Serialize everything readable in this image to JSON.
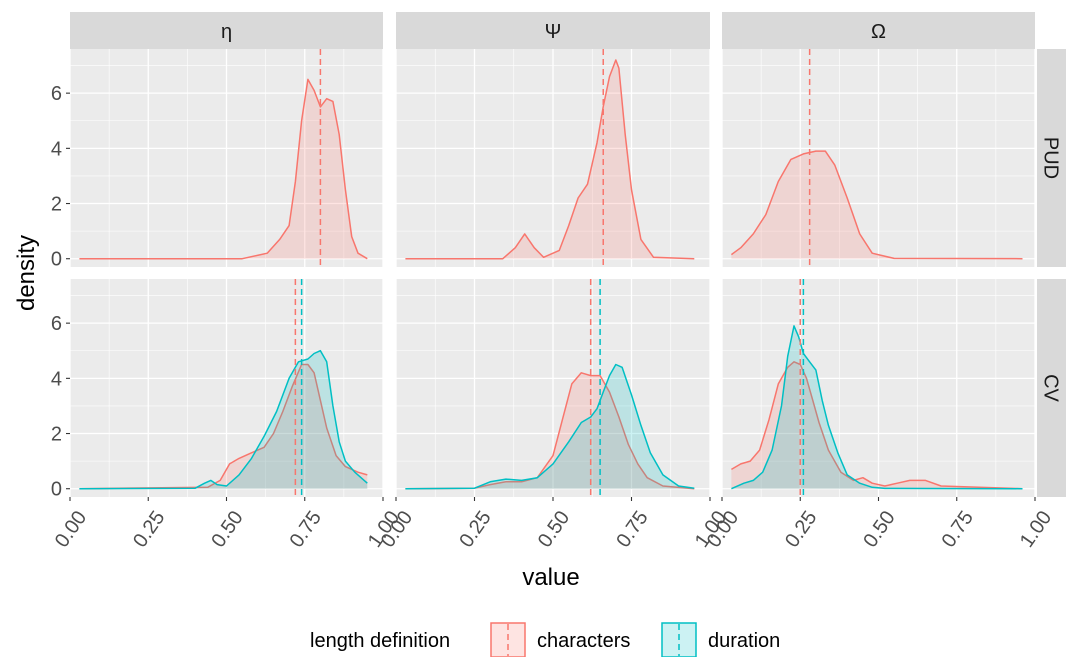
{
  "chart_data": {
    "type": "area",
    "title": "",
    "xlabel": "value",
    "ylabel": "density",
    "xlim": [
      0,
      1
    ],
    "ylim": [
      -0.3,
      7.6
    ],
    "x_ticks": [
      0,
      0.25,
      0.5,
      0.75,
      1
    ],
    "x_tick_labels": [
      "0.00",
      "0.25",
      "0.50",
      "0.75",
      "1.00"
    ],
    "y_ticks": [
      0,
      2,
      4,
      6
    ],
    "y_tick_labels": [
      "0",
      "2",
      "4",
      "6"
    ],
    "grid": true,
    "facet_columns": [
      "η",
      "Ψ",
      "Ω"
    ],
    "facet_rows": [
      "PUD",
      "CV"
    ],
    "legend": {
      "title": "length definition",
      "position": "bottom",
      "entries": [
        {
          "name": "characters",
          "color": "#F8766D"
        },
        {
          "name": "duration",
          "color": "#00BFC4"
        }
      ]
    },
    "panels": [
      {
        "col": "η",
        "row": "PUD",
        "series": [
          {
            "name": "characters",
            "mean": 0.8,
            "x": [
              0.03,
              0.55,
              0.63,
              0.67,
              0.7,
              0.72,
              0.74,
              0.76,
              0.78,
              0.8,
              0.82,
              0.84,
              0.86,
              0.88,
              0.9,
              0.92,
              0.95
            ],
            "y": [
              0,
              0,
              0.2,
              0.7,
              1.2,
              2.8,
              5.0,
              6.5,
              6.1,
              5.5,
              5.8,
              5.7,
              4.5,
              2.5,
              0.8,
              0.2,
              0
            ]
          }
        ]
      },
      {
        "col": "Ψ",
        "row": "PUD",
        "series": [
          {
            "name": "characters",
            "mean": 0.66,
            "x": [
              0.03,
              0.34,
              0.38,
              0.41,
              0.44,
              0.47,
              0.52,
              0.55,
              0.58,
              0.61,
              0.64,
              0.66,
              0.68,
              0.7,
              0.71,
              0.73,
              0.75,
              0.78,
              0.82,
              0.95
            ],
            "y": [
              0,
              0,
              0.4,
              0.9,
              0.4,
              0.05,
              0.3,
              1.2,
              2.2,
              2.7,
              4.2,
              5.5,
              6.6,
              7.2,
              6.9,
              4.5,
              2.5,
              0.7,
              0.05,
              0
            ]
          }
        ]
      },
      {
        "col": "Ω",
        "row": "PUD",
        "series": [
          {
            "name": "characters",
            "mean": 0.28,
            "x": [
              0.03,
              0.06,
              0.1,
              0.14,
              0.18,
              0.22,
              0.26,
              0.3,
              0.33,
              0.36,
              0.4,
              0.44,
              0.48,
              0.55,
              0.96
            ],
            "y": [
              0.15,
              0.4,
              0.9,
              1.6,
              2.8,
              3.6,
              3.8,
              3.9,
              3.9,
              3.4,
              2.2,
              0.9,
              0.2,
              0.01,
              0
            ]
          }
        ]
      },
      {
        "col": "η",
        "row": "CV",
        "series": [
          {
            "name": "characters",
            "mean": 0.72,
            "x": [
              0.03,
              0.44,
              0.48,
              0.51,
              0.54,
              0.58,
              0.62,
              0.65,
              0.68,
              0.71,
              0.74,
              0.76,
              0.78,
              0.8,
              0.82,
              0.85,
              0.88,
              0.92,
              0.95
            ],
            "y": [
              0,
              0.05,
              0.3,
              0.9,
              1.1,
              1.3,
              1.5,
              2.0,
              2.8,
              3.7,
              4.5,
              4.5,
              4.2,
              3.2,
              2.2,
              1.2,
              0.8,
              0.6,
              0.5
            ]
          },
          {
            "name": "duration",
            "mean": 0.74,
            "x": [
              0.03,
              0.4,
              0.43,
              0.45,
              0.47,
              0.5,
              0.54,
              0.58,
              0.62,
              0.66,
              0.7,
              0.73,
              0.76,
              0.78,
              0.8,
              0.82,
              0.84,
              0.86,
              0.88,
              0.91,
              0.95
            ],
            "y": [
              0,
              0.02,
              0.2,
              0.3,
              0.15,
              0.1,
              0.5,
              1.1,
              1.9,
              2.8,
              4.0,
              4.6,
              4.7,
              4.9,
              5.0,
              4.6,
              3.0,
              1.7,
              1.0,
              0.6,
              0.2
            ]
          }
        ]
      },
      {
        "col": "Ψ",
        "row": "CV",
        "series": [
          {
            "name": "characters",
            "mean": 0.62,
            "x": [
              0.03,
              0.25,
              0.3,
              0.35,
              0.4,
              0.45,
              0.5,
              0.53,
              0.56,
              0.59,
              0.62,
              0.65,
              0.68,
              0.71,
              0.74,
              0.77,
              0.8,
              0.85,
              0.95
            ],
            "y": [
              0,
              0.02,
              0.15,
              0.25,
              0.25,
              0.4,
              1.2,
              2.5,
              3.8,
              4.2,
              4.1,
              4.1,
              3.5,
              2.6,
              1.6,
              0.9,
              0.4,
              0.1,
              0
            ]
          },
          {
            "name": "duration",
            "mean": 0.65,
            "x": [
              0.03,
              0.25,
              0.3,
              0.35,
              0.4,
              0.45,
              0.5,
              0.55,
              0.59,
              0.62,
              0.64,
              0.66,
              0.68,
              0.7,
              0.72,
              0.75,
              0.78,
              0.81,
              0.85,
              0.9,
              0.95
            ],
            "y": [
              0,
              0.02,
              0.25,
              0.35,
              0.3,
              0.4,
              0.9,
              1.7,
              2.4,
              2.6,
              2.9,
              3.5,
              4.1,
              4.5,
              4.4,
              3.4,
              2.3,
              1.3,
              0.5,
              0.1,
              0.02
            ]
          }
        ]
      },
      {
        "col": "Ω",
        "row": "CV",
        "series": [
          {
            "name": "characters",
            "mean": 0.25,
            "x": [
              0.03,
              0.06,
              0.09,
              0.12,
              0.15,
              0.18,
              0.21,
              0.23,
              0.25,
              0.27,
              0.29,
              0.31,
              0.34,
              0.38,
              0.42,
              0.45,
              0.48,
              0.52,
              0.56,
              0.6,
              0.65,
              0.7,
              0.96
            ],
            "y": [
              0.7,
              0.9,
              1.0,
              1.4,
              2.5,
              3.8,
              4.4,
              4.6,
              4.5,
              4.0,
              3.2,
              2.4,
              1.4,
              0.6,
              0.3,
              0.4,
              0.2,
              0.1,
              0.2,
              0.3,
              0.3,
              0.1,
              0
            ]
          },
          {
            "name": "duration",
            "mean": 0.26,
            "x": [
              0.03,
              0.07,
              0.1,
              0.13,
              0.16,
              0.19,
              0.21,
              0.23,
              0.245,
              0.26,
              0.28,
              0.3,
              0.32,
              0.34,
              0.37,
              0.4,
              0.44,
              0.48,
              0.52,
              0.96
            ],
            "y": [
              0,
              0.2,
              0.3,
              0.6,
              1.4,
              3.0,
              4.8,
              5.9,
              5.5,
              4.9,
              4.6,
              4.3,
              3.2,
              2.3,
              1.3,
              0.5,
              0.2,
              0.05,
              0.01,
              0
            ]
          }
        ]
      }
    ]
  }
}
